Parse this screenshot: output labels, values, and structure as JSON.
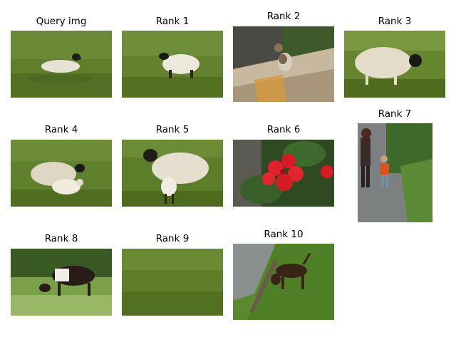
{
  "figure": {
    "panels": [
      {
        "title": "Query img",
        "subject": "sheep-lying-on-grass"
      },
      {
        "title": "Rank 1",
        "subject": "sheep-grazing"
      },
      {
        "title": "Rank 2",
        "subject": "cat-on-steps"
      },
      {
        "title": "Rank 3",
        "subject": "woolly-sheep"
      },
      {
        "title": "Rank 4",
        "subject": "ewe-with-lamb"
      },
      {
        "title": "Rank 5",
        "subject": "sheep-and-lamb-standing"
      },
      {
        "title": "Rank 6",
        "subject": "red-geraniums"
      },
      {
        "title": "Rank 7",
        "subject": "adult-and-child-on-path"
      },
      {
        "title": "Rank 8",
        "subject": "cow-grazing"
      },
      {
        "title": "Rank 9",
        "subject": "empty-grass-field"
      },
      {
        "title": "Rank 10",
        "subject": "dog-by-water"
      }
    ]
  }
}
